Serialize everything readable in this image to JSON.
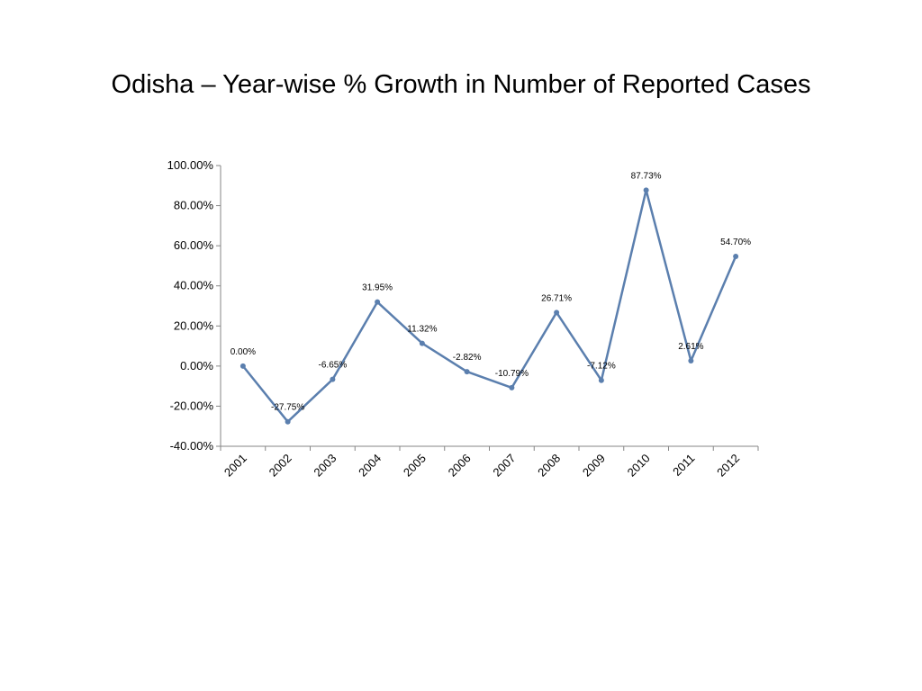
{
  "slide": {
    "title": "Odisha – Year-wise % Growth in Number of Reported Cases"
  },
  "chart_data": {
    "type": "line",
    "title": "",
    "xlabel": "",
    "ylabel": "",
    "categories": [
      "2001",
      "2002",
      "2003",
      "2004",
      "2005",
      "2006",
      "2007",
      "2008",
      "2009",
      "2010",
      "2011",
      "2012"
    ],
    "series": [
      {
        "values": [
          0.0,
          -27.75,
          -6.65,
          31.95,
          11.32,
          -2.82,
          -10.79,
          26.71,
          -7.12,
          87.73,
          2.61,
          54.7
        ],
        "data_labels": [
          "0.00%",
          "-27.75%",
          "-6.65%",
          "31.95%",
          "11.32%",
          "-2.82%",
          "-10.79%",
          "26.71%",
          "-7.12%",
          "87.73%",
          "2.61%",
          "54.70%"
        ],
        "color": "#5b7fae"
      }
    ],
    "ylim": [
      -40,
      100
    ],
    "y_ticks": [
      100,
      80,
      60,
      40,
      20,
      0,
      -20,
      -40
    ],
    "y_tick_labels": [
      "100.00%",
      "80.00%",
      "60.00%",
      "40.00%",
      "20.00%",
      "0.00%",
      "-20.00%",
      "-40.00%"
    ],
    "grid": false,
    "legend": "none"
  }
}
